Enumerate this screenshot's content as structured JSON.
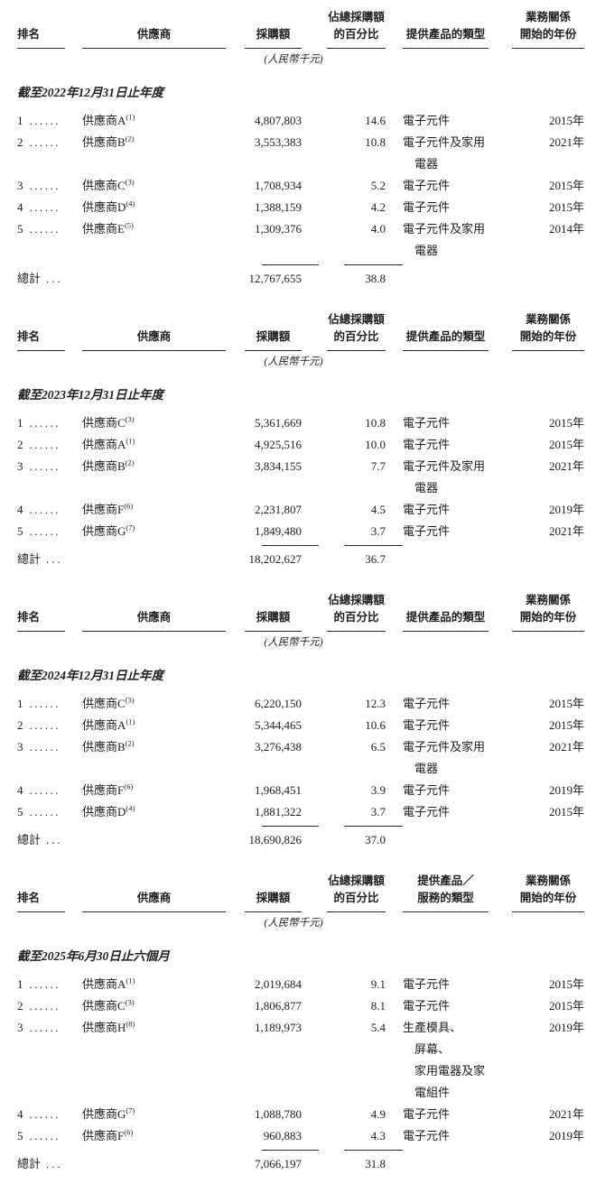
{
  "document": {
    "rank_dots": "......",
    "total_dots": "..."
  },
  "tables": [
    {
      "period": "截至2022年12月31日止年度",
      "headers": {
        "rank": "排名",
        "supplier": "供應商",
        "amount": "採購額",
        "pct": [
          "佔總採購額",
          "的百分比"
        ],
        "product": [
          "提供產品的類型"
        ],
        "relation": [
          "業務關係",
          "開始的年份"
        ]
      },
      "unit_note": "(人民幣千元)",
      "rows": [
        {
          "rank": "1",
          "supplier": "供應商A",
          "note": "(1)",
          "amount": "4,807,803",
          "pct": "14.6",
          "product": [
            "電子元件"
          ],
          "year": "2015年"
        },
        {
          "rank": "2",
          "supplier": "供應商B",
          "note": "(2)",
          "amount": "3,553,383",
          "pct": "10.8",
          "product": [
            "電子元件及家用",
            "電器"
          ],
          "year": "2021年"
        },
        {
          "rank": "3",
          "supplier": "供應商C",
          "note": "(3)",
          "amount": "1,708,934",
          "pct": "5.2",
          "product": [
            "電子元件"
          ],
          "year": "2015年"
        },
        {
          "rank": "4",
          "supplier": "供應商D",
          "note": "(4)",
          "amount": "1,388,159",
          "pct": "4.2",
          "product": [
            "電子元件"
          ],
          "year": "2015年"
        },
        {
          "rank": "5",
          "supplier": "供應商E",
          "note": "(5)",
          "amount": "1,309,376",
          "pct": "4.0",
          "product": [
            "電子元件及家用",
            "電器"
          ],
          "year": "2014年"
        }
      ],
      "total": {
        "label": "總計",
        "amount": "12,767,655",
        "pct": "38.8"
      }
    },
    {
      "period": "截至2023年12月31日止年度",
      "headers": {
        "rank": "排名",
        "supplier": "供應商",
        "amount": "採購額",
        "pct": [
          "佔總採購額",
          "的百分比"
        ],
        "product": [
          "提供產品的類型"
        ],
        "relation": [
          "業務關係",
          "開始的年份"
        ]
      },
      "unit_note": "(人民幣千元)",
      "rows": [
        {
          "rank": "1",
          "supplier": "供應商C",
          "note": "(3)",
          "amount": "5,361,669",
          "pct": "10.8",
          "product": [
            "電子元件"
          ],
          "year": "2015年"
        },
        {
          "rank": "2",
          "supplier": "供應商A",
          "note": "(1)",
          "amount": "4,925,516",
          "pct": "10.0",
          "product": [
            "電子元件"
          ],
          "year": "2015年"
        },
        {
          "rank": "3",
          "supplier": "供應商B",
          "note": "(2)",
          "amount": "3,834,155",
          "pct": "7.7",
          "product": [
            "電子元件及家用",
            "電器"
          ],
          "year": "2021年"
        },
        {
          "rank": "4",
          "supplier": "供應商F",
          "note": "(6)",
          "amount": "2,231,807",
          "pct": "4.5",
          "product": [
            "電子元件"
          ],
          "year": "2019年"
        },
        {
          "rank": "5",
          "supplier": "供應商G",
          "note": "(7)",
          "amount": "1,849,480",
          "pct": "3.7",
          "product": [
            "電子元件"
          ],
          "year": "2021年"
        }
      ],
      "total": {
        "label": "總計",
        "amount": "18,202,627",
        "pct": "36.7"
      }
    },
    {
      "period": "截至2024年12月31日止年度",
      "headers": {
        "rank": "排名",
        "supplier": "供應商",
        "amount": "採購額",
        "pct": [
          "佔總採購額",
          "的百分比"
        ],
        "product": [
          "提供產品的類型"
        ],
        "relation": [
          "業務關係",
          "開始的年份"
        ]
      },
      "unit_note": "(人民幣千元)",
      "rows": [
        {
          "rank": "1",
          "supplier": "供應商C",
          "note": "(3)",
          "amount": "6,220,150",
          "pct": "12.3",
          "product": [
            "電子元件"
          ],
          "year": "2015年"
        },
        {
          "rank": "2",
          "supplier": "供應商A",
          "note": "(1)",
          "amount": "5,344,465",
          "pct": "10.6",
          "product": [
            "電子元件"
          ],
          "year": "2015年"
        },
        {
          "rank": "3",
          "supplier": "供應商B",
          "note": "(2)",
          "amount": "3,276,438",
          "pct": "6.5",
          "product": [
            "電子元件及家用",
            "電器"
          ],
          "year": "2021年"
        },
        {
          "rank": "4",
          "supplier": "供應商F",
          "note": "(6)",
          "amount": "1,968,451",
          "pct": "3.9",
          "product": [
            "電子元件"
          ],
          "year": "2019年"
        },
        {
          "rank": "5",
          "supplier": "供應商D",
          "note": "(4)",
          "amount": "1,881,322",
          "pct": "3.7",
          "product": [
            "電子元件"
          ],
          "year": "2015年"
        }
      ],
      "total": {
        "label": "總計",
        "amount": "18,690,826",
        "pct": "37.0"
      }
    },
    {
      "period": "截至2025年6月30日止六個月",
      "headers": {
        "rank": "排名",
        "supplier": "供應商",
        "amount": "採購額",
        "pct": [
          "佔總採購額",
          "的百分比"
        ],
        "product": [
          "提供產品／",
          "服務的類型"
        ],
        "relation": [
          "業務關係",
          "開始的年份"
        ]
      },
      "unit_note": "(人民幣千元)",
      "rows": [
        {
          "rank": "1",
          "supplier": "供應商A",
          "note": "(1)",
          "amount": "2,019,684",
          "pct": "9.1",
          "product": [
            "電子元件"
          ],
          "year": "2015年"
        },
        {
          "rank": "2",
          "supplier": "供應商C",
          "note": "(3)",
          "amount": "1,806,877",
          "pct": "8.1",
          "product": [
            "電子元件"
          ],
          "year": "2015年"
        },
        {
          "rank": "3",
          "supplier": "供應商H",
          "note": "(8)",
          "amount": "1,189,973",
          "pct": "5.4",
          "product": [
            "生產模具、",
            "屏幕、",
            "家用電器及家",
            "電組件"
          ],
          "year": "2019年"
        },
        {
          "rank": "4",
          "supplier": "供應商G",
          "note": "(7)",
          "amount": "1,088,780",
          "pct": "4.9",
          "product": [
            "電子元件"
          ],
          "year": "2021年"
        },
        {
          "rank": "5",
          "supplier": "供應商F",
          "note": "(6)",
          "amount": "960,883",
          "pct": "4.3",
          "product": [
            "電子元件"
          ],
          "year": "2019年"
        }
      ],
      "total": {
        "label": "總計",
        "amount": "7,066,197",
        "pct": "31.8"
      }
    }
  ]
}
